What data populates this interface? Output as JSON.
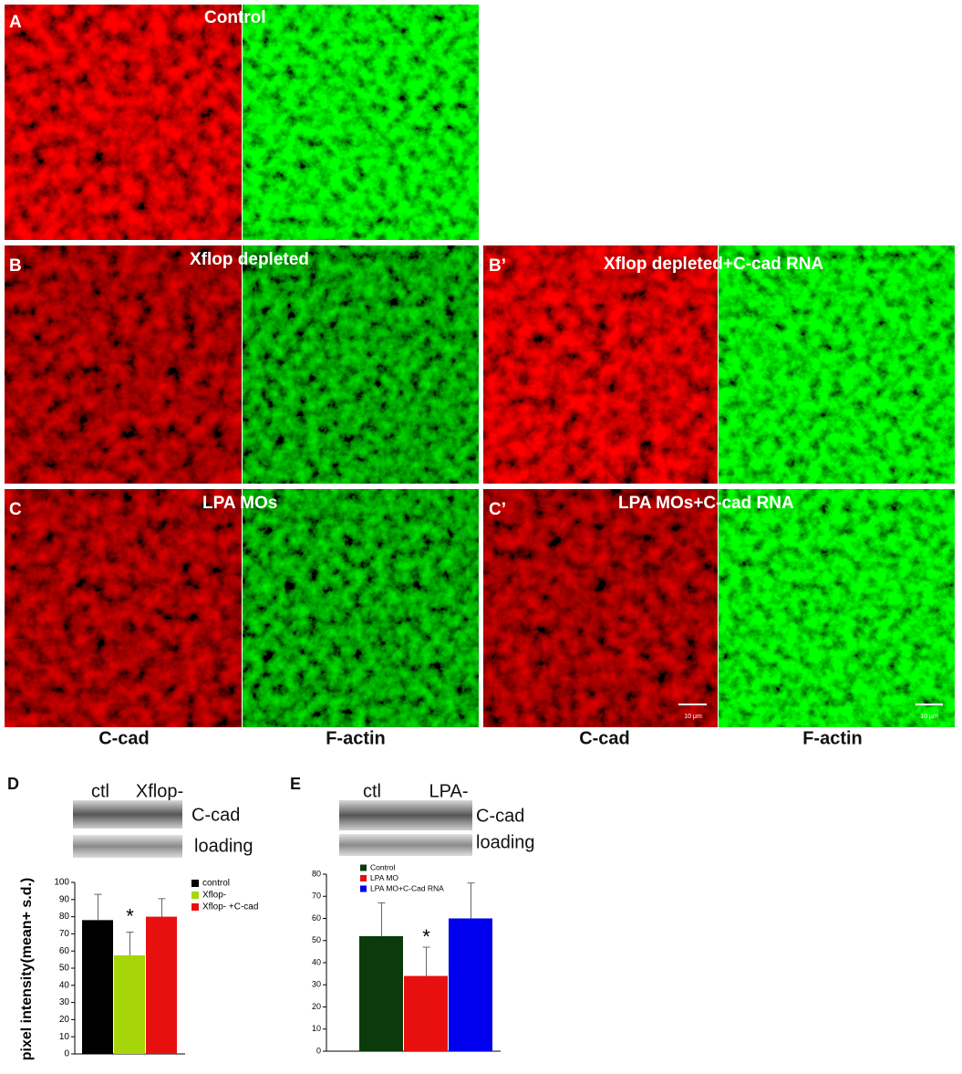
{
  "figure": {
    "panels": [
      {
        "label": "A",
        "title": "Control"
      },
      {
        "label": "B",
        "title": "Xflop depleted"
      },
      {
        "label": "B’",
        "title": "Xflop depleted+C-cad RNA"
      },
      {
        "label": "C",
        "title": "LPA MOs"
      },
      {
        "label": "C’",
        "title": "LPA MOs+C-cad RNA"
      }
    ],
    "scale_bar": "10 μm",
    "column_labels": [
      "C-cad",
      "F-actin",
      "C-cad",
      "F-actin"
    ]
  },
  "chart_data": [
    {
      "type": "bar",
      "panel_label": "D",
      "blot": {
        "lanes": [
          "ctl",
          "Xflop-"
        ],
        "rows": [
          "C-cad",
          "loading"
        ]
      },
      "ylabel": "pixel intensity(mean+ s.d.)",
      "categories": [
        "control",
        "Xflop-",
        "Xflop- +C-cad"
      ],
      "values": [
        78,
        57.5,
        80
      ],
      "errors": [
        15,
        13.5,
        10.5
      ],
      "colors": [
        "#000000",
        "#a6d609",
        "#e8100f"
      ],
      "annotation": "*",
      "ylim": [
        0,
        100
      ],
      "yticks": [
        0,
        10,
        20,
        30,
        40,
        50,
        60,
        70,
        80,
        90,
        100
      ]
    },
    {
      "type": "bar",
      "panel_label": "E",
      "blot": {
        "lanes": [
          "ctl",
          "LPA-"
        ],
        "rows": [
          "C-cad",
          "loading"
        ]
      },
      "categories": [
        "Control",
        "LPA MO",
        "LPA MO+C-Cad RNA"
      ],
      "values": [
        52,
        34,
        60
      ],
      "errors": [
        15,
        13,
        16
      ],
      "colors": [
        "#0b3a0c",
        "#e8100f",
        "#0000ee"
      ],
      "annotation": "*",
      "ylim": [
        0,
        80
      ],
      "yticks": [
        0,
        10,
        20,
        30,
        40,
        50,
        60,
        70,
        80
      ]
    }
  ]
}
